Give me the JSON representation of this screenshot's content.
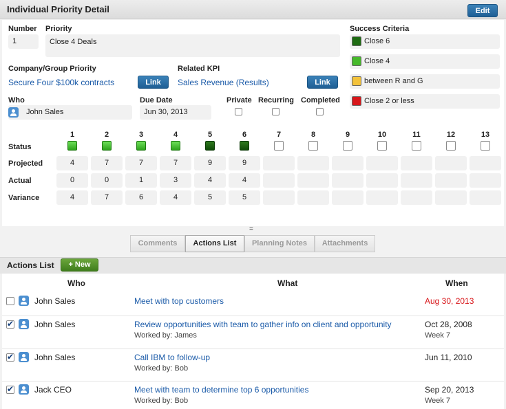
{
  "header": {
    "title": "Individual Priority Detail",
    "edit_label": "Edit"
  },
  "detail": {
    "number_label": "Number",
    "number_value": "1",
    "priority_label": "Priority",
    "priority_value": "Close 4 Deals",
    "company_label": "Company/Group Priority",
    "company_value": "Secure Four $100k contracts",
    "company_link_label": "Link",
    "kpi_label": "Related KPI",
    "kpi_value": "Sales Revenue (Results)",
    "kpi_link_label": "Link",
    "who_label": "Who",
    "who_value": "John Sales",
    "due_label": "Due Date",
    "due_value": "Jun 30, 2013",
    "private_label": "Private",
    "recurring_label": "Recurring",
    "completed_label": "Completed"
  },
  "success_criteria": {
    "label": "Success Criteria",
    "items": [
      {
        "text": "Close 6",
        "color": "#1e6b12"
      },
      {
        "text": "Close 4",
        "color": "#46b92a"
      },
      {
        "text": "between R and G",
        "color": "#f3c23a"
      },
      {
        "text": "Close 2 or less",
        "color": "#d8161a"
      }
    ]
  },
  "weeks": {
    "columns": [
      "1",
      "2",
      "3",
      "4",
      "5",
      "6",
      "7",
      "8",
      "9",
      "10",
      "11",
      "12",
      "13"
    ],
    "row_labels": {
      "status": "Status",
      "projected": "Projected",
      "actual": "Actual",
      "variance": "Variance"
    },
    "status": [
      "light",
      "light",
      "light",
      "light",
      "dark",
      "dark",
      "",
      "",
      "",
      "",
      "",
      "",
      ""
    ],
    "projected": [
      "4",
      "7",
      "7",
      "7",
      "9",
      "9",
      "",
      "",
      "",
      "",
      "",
      "",
      ""
    ],
    "actual": [
      "0",
      "0",
      "1",
      "3",
      "4",
      "4",
      "",
      "",
      "",
      "",
      "",
      "",
      ""
    ],
    "variance": [
      "4",
      "7",
      "6",
      "4",
      "5",
      "5",
      "",
      "",
      "",
      "",
      "",
      "",
      ""
    ]
  },
  "tabs": [
    {
      "label": "Comments",
      "active": false
    },
    {
      "label": "Actions List",
      "active": true
    },
    {
      "label": "Planning Notes",
      "active": false
    },
    {
      "label": "Attachments",
      "active": false
    }
  ],
  "actions": {
    "title": "Actions List",
    "new_label": "+ New",
    "col_who": "Who",
    "col_what": "What",
    "col_when": "When",
    "rows": [
      {
        "checked": false,
        "who": "John Sales",
        "what": "Meet with top customers",
        "worked": "",
        "when": "Aug 30, 2013",
        "week": "",
        "overdue": true
      },
      {
        "checked": true,
        "who": "John Sales",
        "what": "Review opportunities with team to gather info on client and opportunity",
        "worked": "Worked by: James",
        "when": "Oct 28, 2008",
        "week": "Week 7",
        "overdue": false
      },
      {
        "checked": true,
        "who": "John Sales",
        "what": "Call IBM to follow-up",
        "worked": "Worked by: Bob",
        "when": "Jun 11, 2010",
        "week": "",
        "overdue": false
      },
      {
        "checked": true,
        "who": "Jack CEO",
        "what": "Meet with team to determine top 6 opportunities",
        "worked": "Worked by: Bob",
        "when": "Sep 20, 2013",
        "week": "Week 7",
        "overdue": false
      }
    ]
  }
}
